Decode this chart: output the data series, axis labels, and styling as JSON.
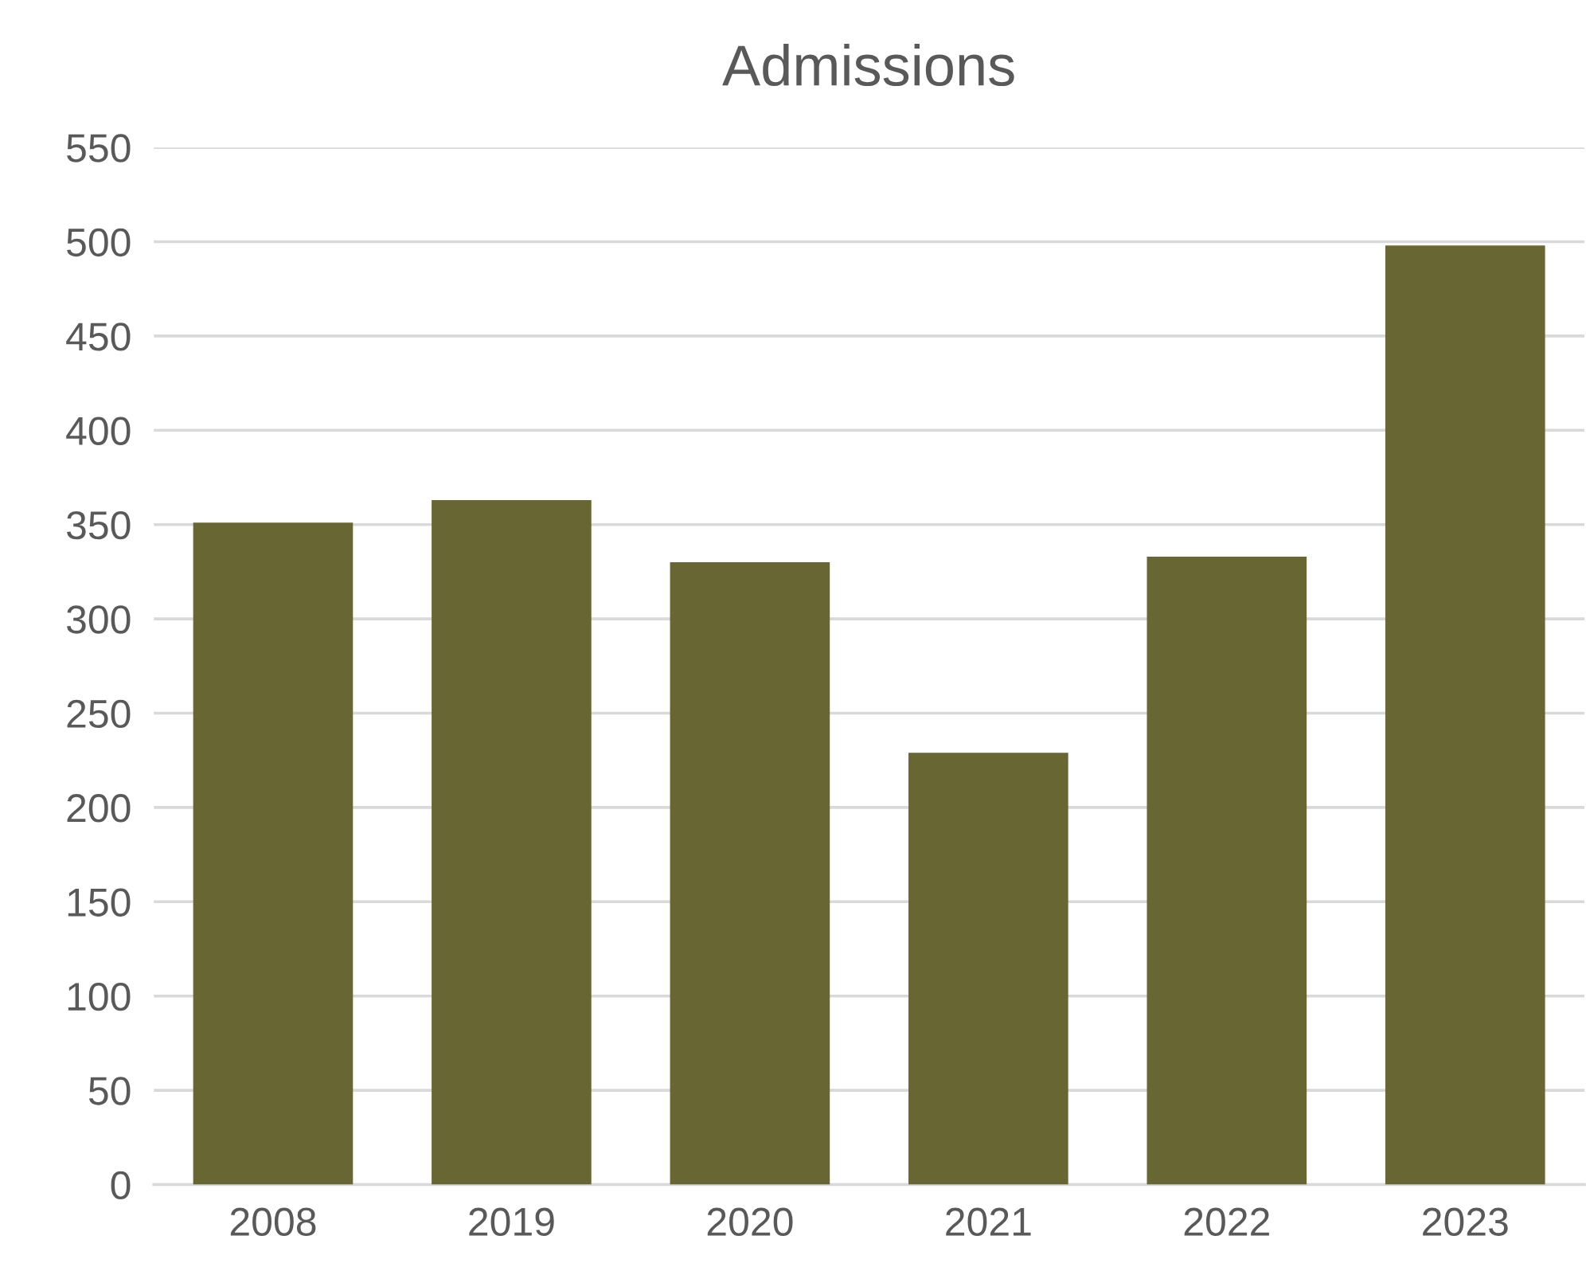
{
  "chart_data": {
    "type": "bar",
    "title": "Admissions",
    "categories": [
      "2008",
      "2019",
      "2020",
      "2021",
      "2022",
      "2023"
    ],
    "values": [
      351,
      363,
      330,
      229,
      333,
      498
    ],
    "color": "#686734",
    "ylim": [
      0,
      550
    ],
    "yticks": [
      0,
      50,
      100,
      150,
      200,
      250,
      300,
      350,
      400,
      450,
      500,
      550
    ],
    "grid": "y",
    "legend": false
  }
}
